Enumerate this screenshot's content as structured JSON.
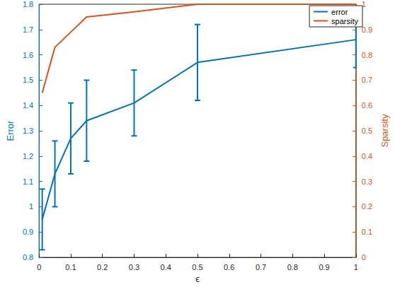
{
  "chart_data": {
    "type": "line",
    "x_label": "ϵ",
    "y_label": "Error",
    "y2_label": "Sparsity",
    "x": [
      0.01,
      0.05,
      0.1,
      0.15,
      0.3,
      0.5,
      1
    ],
    "series": [
      {
        "name": "error",
        "color": "#0072bd",
        "type": "line",
        "values": [
          0.95,
          1.13,
          1.27,
          1.34,
          1.41,
          1.57,
          1.66
        ],
        "error_low": [
          0.83,
          1.0,
          1.13,
          1.18,
          1.28,
          1.42,
          1.55
        ],
        "error_high": [
          1.07,
          1.26,
          1.41,
          1.5,
          1.54,
          1.72,
          1.77
        ]
      },
      {
        "name": "sparsity",
        "color": "#d95319",
        "type": "line",
        "axis": "y2",
        "values": [
          0.65,
          0.83,
          0.89,
          0.95,
          0.97,
          1.0,
          1.0
        ]
      }
    ],
    "xlim": [
      0,
      1
    ],
    "xticks": [
      0,
      0.1,
      0.2,
      0.3,
      0.4,
      0.5,
      0.6,
      0.7,
      0.8,
      0.9,
      1
    ],
    "ylim": [
      0.8,
      1.8
    ],
    "yticks": [
      0.8,
      0.9,
      1,
      1.1,
      1.2,
      1.3,
      1.4,
      1.5,
      1.6,
      1.7,
      1.8
    ],
    "y2lim": [
      0,
      1
    ],
    "y2ticks": [
      0,
      0.1,
      0.2,
      0.3,
      0.4,
      0.5,
      0.6,
      0.7,
      0.8,
      0.9,
      1
    ],
    "grid": false,
    "legend": "upper right"
  }
}
